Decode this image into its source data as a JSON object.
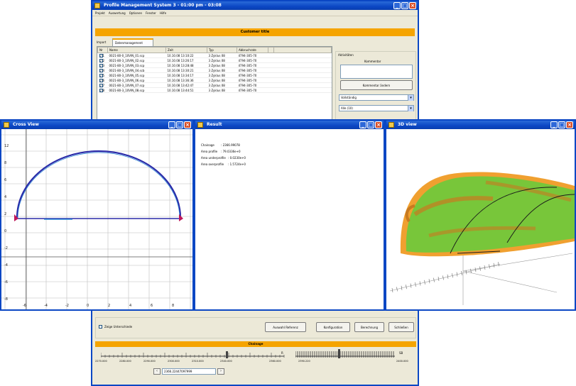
{
  "main_window": {
    "title": "Profile Management System 3 - 01:00 pm - 03:08",
    "menu": [
      "Projekt",
      "Auswertung",
      "Optionen",
      "Fenster",
      "Hilfe"
    ],
    "banner": "Customer title",
    "tabs": [
      "Import",
      "Datenmanagement"
    ],
    "table": {
      "columns": [
        "Nr",
        "Name",
        "Zeit",
        "Typ",
        "Abbruchrate",
        "",
        ""
      ],
      "rows": [
        {
          "nr": "1",
          "name": "0021-80-0_10VIN_01.scp",
          "zeit": "10.10.08 13:10:22",
          "typ": "3 Zyklus 08",
          "abbr": "4794-305-70"
        },
        {
          "nr": "2",
          "name": "0021-80-3_10VIN_02.scp",
          "zeit": "10.10.08 13:26:17",
          "typ": "3 Zyklus 08",
          "abbr": "4794-305-70"
        },
        {
          "nr": "3",
          "name": "0021-80-3_10VIN_03.scp",
          "zeit": "10.10.08 13:28:48",
          "typ": "3 Zyklus 08",
          "abbr": "4794-305-70"
        },
        {
          "nr": "4",
          "name": "0021-80-3_10VIN_04.scb",
          "zeit": "10.10.08 13:30:21",
          "typ": "3 Zyklus 08",
          "abbr": "4794-305-70"
        },
        {
          "nr": "5",
          "name": "0021-80-3_10VIN_05.scp",
          "zeit": "10.10.08 13:34:17",
          "typ": "3 Zyklus 08",
          "abbr": "4794-305-70"
        },
        {
          "nr": "6",
          "name": "0021-80-3_10VIN_06.scp",
          "zeit": "10.10.08 13:36:36",
          "typ": "3 Zyklus 08",
          "abbr": "4794-305-70"
        },
        {
          "nr": "7",
          "name": "0021-80-3_10VIN_07.scp",
          "zeit": "10.10.08 13:42:47",
          "typ": "3 Zyklus 08",
          "abbr": "4794-305-70"
        },
        {
          "nr": "8",
          "name": "0021-80-3_10VIN_08.scp",
          "zeit": "10.10.08 13:44:51",
          "typ": "3 Zyklus 08",
          "abbr": "4794-305-70"
        }
      ]
    },
    "side": {
      "group_label": "Aktivitäten",
      "field_label": "Kommentar",
      "apply_button": "Kommentar ändern",
      "combo1": "Vollständig",
      "combo2": "Alle (10)"
    },
    "bottom": {
      "checkbox_label": "Zeige Unterschiede",
      "buttons": [
        "Auswahl Referenz",
        "Konfiguration",
        "Berechnung",
        "Schließen"
      ]
    },
    "chainage": {
      "header": "Chainage",
      "ticks": [
        "2270.000",
        "2280.000",
        "2290.000",
        "2300.000",
        "2310.000",
        "2320.000",
        "2330.000",
        "2340.000",
        "2350.000"
      ],
      "right_start": "2360.000",
      "right_mid": "2390.220",
      "right_end": "2400.000",
      "marker_label": "R",
      "end_label": "SB",
      "input_value": "2366.22447097999"
    }
  },
  "profile_window": {
    "title": "Cross View",
    "y_labels": [
      "12",
      "8",
      "6",
      "4",
      "2",
      "0",
      "-2",
      "-4",
      "-6",
      "-8"
    ],
    "x_labels": [
      "-6",
      "-4",
      "-2",
      "0",
      "2",
      "4",
      "6",
      "8"
    ]
  },
  "result_window": {
    "title": "Result",
    "lines": [
      {
        "label": "Chainage",
        "value": ": 2366.99078"
      },
      {
        "label": "Area profile",
        "value": ": 79.0336e+0"
      },
      {
        "label": "Area underprofile",
        "value": ": 0.0230e+0"
      },
      {
        "label": "Area overprofile",
        "value": ": 1.5724e+0"
      }
    ]
  },
  "view3d_window": {
    "title": "3D view"
  }
}
